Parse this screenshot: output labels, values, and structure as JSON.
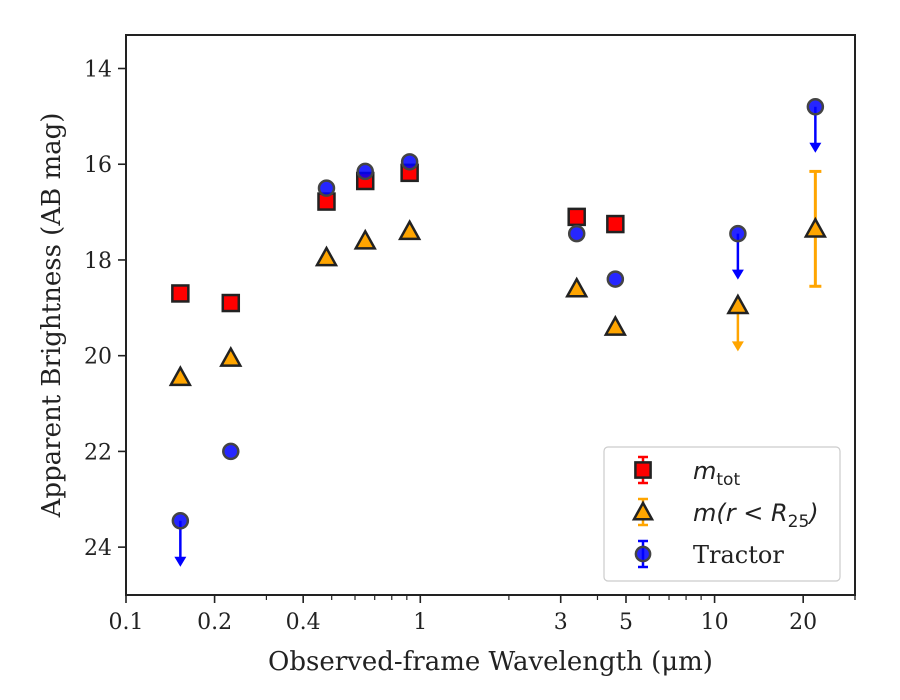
{
  "chart_data": {
    "type": "scatter",
    "xlabel": "Observed-frame Wavelength (μm)",
    "ylabel": "Apparent Brightness (AB mag)",
    "xscale": "log",
    "xlim": [
      0.1,
      30
    ],
    "ylim": [
      25,
      13.3
    ],
    "y_inverted": true,
    "x_ticks": [
      0.1,
      0.2,
      0.4,
      1,
      3,
      5,
      10,
      20
    ],
    "x_tick_labels": [
      "0.1",
      "0.2",
      "0.4",
      "1",
      "3",
      "5",
      "10",
      "20"
    ],
    "y_ticks": [
      14,
      16,
      18,
      20,
      22,
      24
    ],
    "y_tick_labels": [
      "14",
      "16",
      "18",
      "20",
      "22",
      "24"
    ],
    "legend_position": "lower-right",
    "series": [
      {
        "key": "mtot",
        "legend_base": "m",
        "legend_sub": "tot",
        "marker": "square",
        "color": "#ff0000",
        "errcolor": "#ff0000",
        "points": [
          {
            "x": 0.153,
            "y": 18.7
          },
          {
            "x": 0.227,
            "y": 18.9
          },
          {
            "x": 0.48,
            "y": 16.78
          },
          {
            "x": 0.65,
            "y": 16.35
          },
          {
            "x": 0.92,
            "y": 16.18
          },
          {
            "x": 3.4,
            "y": 17.1
          },
          {
            "x": 4.6,
            "y": 17.25
          }
        ]
      },
      {
        "key": "mr25",
        "legend_text": "m(r < R25)",
        "marker": "triangle",
        "color": "#ffa500",
        "errcolor": "#ffa500",
        "points": [
          {
            "x": 0.153,
            "y": 20.45
          },
          {
            "x": 0.227,
            "y": 20.05
          },
          {
            "x": 0.48,
            "y": 17.95
          },
          {
            "x": 0.65,
            "y": 17.6
          },
          {
            "x": 0.92,
            "y": 17.4
          },
          {
            "x": 3.4,
            "y": 18.6
          },
          {
            "x": 4.6,
            "y": 19.4
          },
          {
            "x": 12,
            "y": 18.95,
            "upper_limit": true
          },
          {
            "x": 22,
            "y": 17.35,
            "yerr": 1.2
          }
        ]
      },
      {
        "key": "tractor",
        "legend_text": "Tractor",
        "marker": "circle",
        "color": "#0000ff",
        "errcolor": "#0000ff",
        "points": [
          {
            "x": 0.153,
            "y": 23.45,
            "upper_limit": true
          },
          {
            "x": 0.227,
            "y": 22.0
          },
          {
            "x": 0.48,
            "y": 16.5
          },
          {
            "x": 0.65,
            "y": 16.15
          },
          {
            "x": 0.92,
            "y": 15.95
          },
          {
            "x": 3.4,
            "y": 17.45
          },
          {
            "x": 4.6,
            "y": 18.4
          },
          {
            "x": 12,
            "y": 17.45,
            "upper_limit": true
          },
          {
            "x": 22,
            "y": 14.8,
            "upper_limit": true
          }
        ]
      }
    ]
  }
}
